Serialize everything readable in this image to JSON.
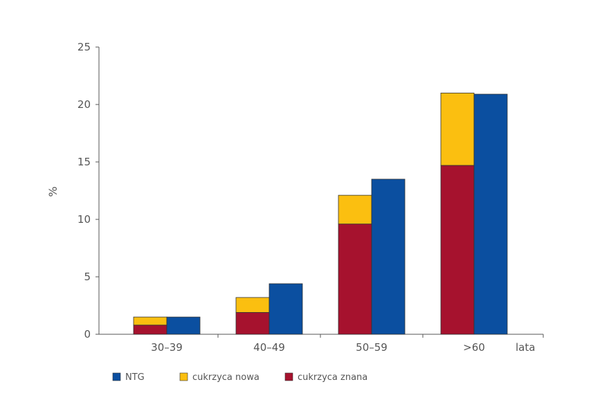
{
  "chart_data": {
    "type": "bar",
    "title": "",
    "ylabel": "%",
    "xlabel": "lata",
    "ylim": [
      0,
      25
    ],
    "yticks": [
      0,
      5,
      10,
      15,
      20,
      25
    ],
    "grid": false,
    "legend_placement": "bottom-left",
    "categories": [
      "30–39",
      "40–49",
      "50–59",
      ">60"
    ],
    "series": [
      {
        "name": "cukrzyca znana",
        "color": "#A6122E",
        "stack": "cukrzyca",
        "values": [
          0.8,
          1.9,
          9.6,
          14.7
        ]
      },
      {
        "name": "cukrzyca nowa",
        "color": "#FBBF10",
        "stack": "cukrzyca",
        "values": [
          0.7,
          1.3,
          2.5,
          6.3
        ]
      },
      {
        "name": "NTG",
        "color": "#0B4FA0",
        "stack": "ntg",
        "values": [
          1.5,
          4.4,
          13.5,
          20.9
        ]
      }
    ],
    "legend": [
      {
        "name": "NTG",
        "color": "#0B4FA0"
      },
      {
        "name": "cukrzyca nowa",
        "color": "#FBBF10"
      },
      {
        "name": "cukrzyca znana",
        "color": "#A6122E"
      }
    ]
  }
}
